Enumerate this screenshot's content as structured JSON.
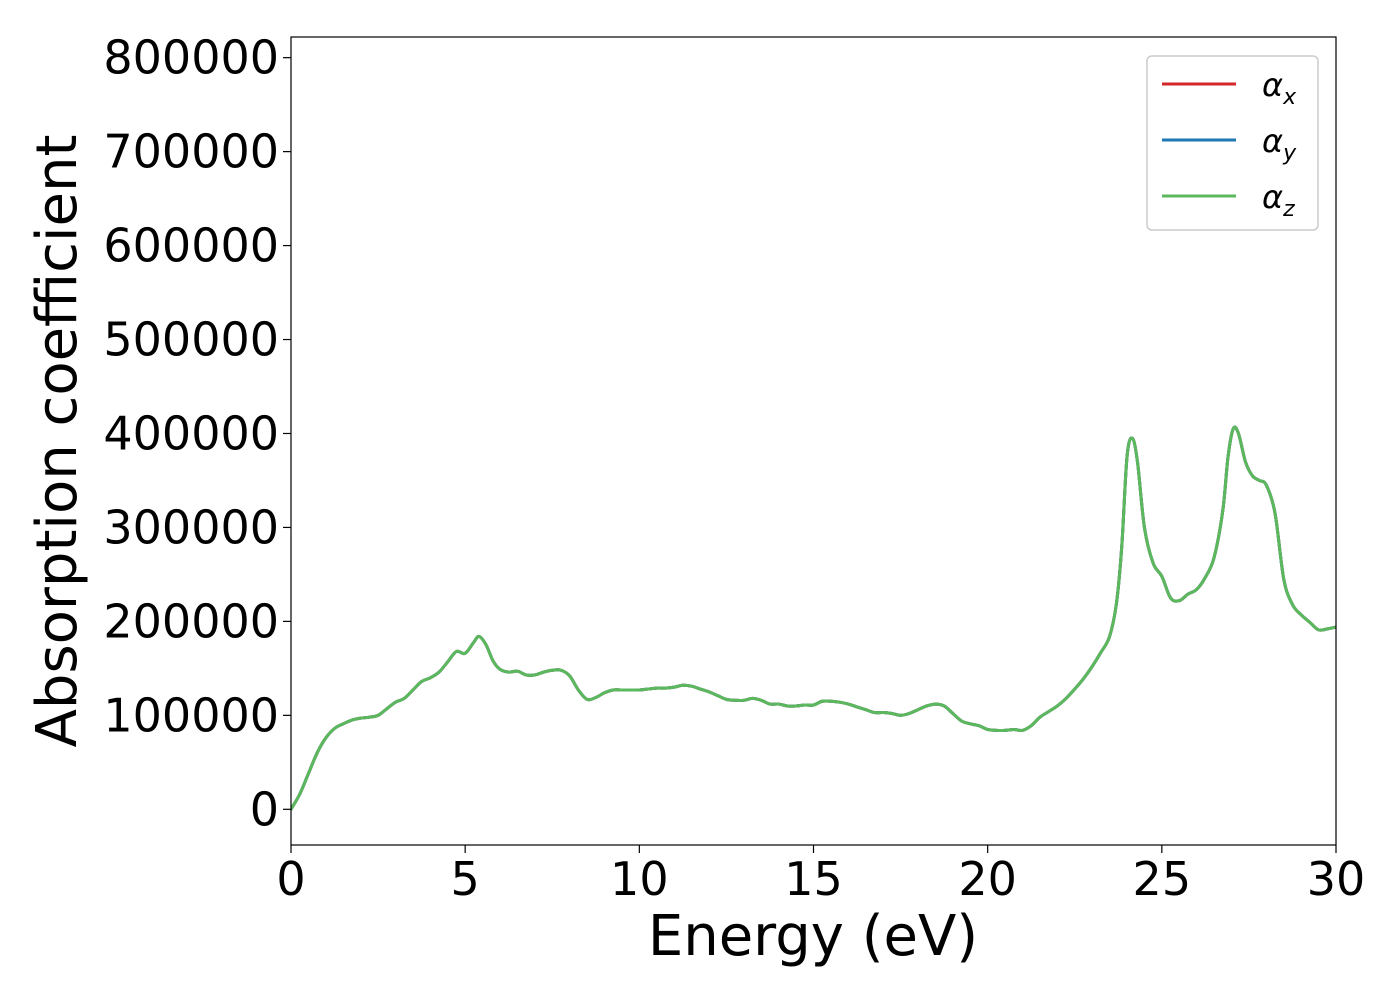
{
  "chart_data": {
    "type": "line",
    "xlabel": "Energy (eV)",
    "ylabel": "Absorption coefficient",
    "xlim": [
      0,
      30
    ],
    "ylim": [
      -38000,
      822000
    ],
    "xticks": [
      0,
      5,
      10,
      15,
      20,
      25,
      30
    ],
    "yticks": [
      0,
      100000,
      200000,
      300000,
      400000,
      500000,
      600000,
      700000,
      800000
    ],
    "grid": false,
    "legend_position": "top-right",
    "x": [
      0,
      0.25,
      0.5,
      0.75,
      1.0,
      1.25,
      1.5,
      1.75,
      2.0,
      2.25,
      2.5,
      2.75,
      3.0,
      3.25,
      3.5,
      3.75,
      4.0,
      4.25,
      4.5,
      4.75,
      5.0,
      5.25,
      5.4,
      5.6,
      5.8,
      6.0,
      6.25,
      6.5,
      6.75,
      7.0,
      7.25,
      7.5,
      7.75,
      8.0,
      8.25,
      8.5,
      8.75,
      9.0,
      9.25,
      9.5,
      9.75,
      10.0,
      10.25,
      10.5,
      10.75,
      11.0,
      11.25,
      11.5,
      11.75,
      12.0,
      12.25,
      12.5,
      12.75,
      13.0,
      13.25,
      13.5,
      13.75,
      14.0,
      14.25,
      14.5,
      14.75,
      15.0,
      15.25,
      15.5,
      15.75,
      16.0,
      16.25,
      16.5,
      16.75,
      17.0,
      17.25,
      17.5,
      17.75,
      18.0,
      18.25,
      18.5,
      18.75,
      19.0,
      19.25,
      19.5,
      19.75,
      20.0,
      20.25,
      20.5,
      20.75,
      21.0,
      21.25,
      21.5,
      21.75,
      22.0,
      22.25,
      22.5,
      22.75,
      23.0,
      23.25,
      23.5,
      23.7,
      23.85,
      24.0,
      24.15,
      24.3,
      24.5,
      24.75,
      25.0,
      25.25,
      25.5,
      25.75,
      26.0,
      26.25,
      26.5,
      26.75,
      26.9,
      27.05,
      27.2,
      27.4,
      27.6,
      27.8,
      28.0,
      28.25,
      28.5,
      28.75,
      29.0,
      29.25,
      29.5,
      29.75,
      30.0
    ],
    "series": [
      {
        "name": "α_x",
        "label_main": "α",
        "label_sub": "x",
        "color": "#d62728",
        "values": [
          0,
          16000,
          38000,
          60000,
          76000,
          86000,
          91000,
          95000,
          97000,
          98000,
          100000,
          107000,
          114000,
          118000,
          127000,
          136000,
          140000,
          146000,
          157000,
          168000,
          166000,
          178000,
          184000,
          175000,
          158000,
          149000,
          146000,
          147000,
          143000,
          143000,
          146000,
          148000,
          148000,
          142000,
          127000,
          117000,
          119000,
          124000,
          127000,
          127000,
          127000,
          127000,
          128000,
          129000,
          129000,
          130000,
          132000,
          131000,
          128000,
          125000,
          121000,
          117000,
          116000,
          116000,
          118000,
          116000,
          112000,
          112000,
          110000,
          110000,
          111000,
          111000,
          115000,
          115000,
          114000,
          112000,
          109000,
          106000,
          103000,
          103000,
          102000,
          100000,
          102000,
          106000,
          110000,
          112000,
          110000,
          102000,
          94000,
          91000,
          89000,
          85000,
          84000,
          84000,
          85000,
          84000,
          89000,
          98000,
          104000,
          110000,
          118000,
          128000,
          139000,
          152000,
          167000,
          184000,
          220000,
          280000,
          375000,
          395000,
          370000,
          300000,
          262000,
          248000,
          225000,
          222000,
          229000,
          234000,
          247000,
          268000,
          318000,
          375000,
          405000,
          400000,
          370000,
          355000,
          350000,
          345000,
          315000,
          245000,
          218000,
          207000,
          199000,
          191000,
          192000,
          194000
        ]
      },
      {
        "name": "α_y",
        "label_main": "α",
        "label_sub": "y",
        "color": "#1f77b4",
        "values": [
          0,
          16000,
          38000,
          60000,
          76000,
          86000,
          91000,
          95000,
          97000,
          98000,
          100000,
          107000,
          114000,
          118000,
          127000,
          136000,
          140000,
          146000,
          157000,
          168000,
          166000,
          178000,
          184000,
          175000,
          158000,
          149000,
          146000,
          147000,
          143000,
          143000,
          146000,
          148000,
          148000,
          142000,
          127000,
          117000,
          119000,
          124000,
          127000,
          127000,
          127000,
          127000,
          128000,
          129000,
          129000,
          130000,
          132000,
          131000,
          128000,
          125000,
          121000,
          117000,
          116000,
          116000,
          118000,
          116000,
          112000,
          112000,
          110000,
          110000,
          111000,
          111000,
          115000,
          115000,
          114000,
          112000,
          109000,
          106000,
          103000,
          103000,
          102000,
          100000,
          102000,
          106000,
          110000,
          112000,
          110000,
          102000,
          94000,
          91000,
          89000,
          85000,
          84000,
          84000,
          85000,
          84000,
          89000,
          98000,
          104000,
          110000,
          118000,
          128000,
          139000,
          152000,
          167000,
          184000,
          220000,
          280000,
          375000,
          395000,
          370000,
          300000,
          262000,
          248000,
          225000,
          222000,
          229000,
          234000,
          247000,
          268000,
          318000,
          375000,
          405000,
          400000,
          370000,
          355000,
          350000,
          345000,
          315000,
          245000,
          218000,
          207000,
          199000,
          191000,
          192000,
          194000
        ]
      },
      {
        "name": "α_z",
        "label_main": "α",
        "label_sub": "z",
        "color": "#5cb85c",
        "values": [
          0,
          16000,
          38000,
          60000,
          76000,
          86000,
          91000,
          95000,
          97000,
          98000,
          100000,
          107000,
          114000,
          118000,
          127000,
          136000,
          140000,
          146000,
          157000,
          168000,
          166000,
          178000,
          184000,
          175000,
          158000,
          149000,
          146000,
          147000,
          143000,
          143000,
          146000,
          148000,
          148000,
          142000,
          127000,
          117000,
          119000,
          124000,
          127000,
          127000,
          127000,
          127000,
          128000,
          129000,
          129000,
          130000,
          132000,
          131000,
          128000,
          125000,
          121000,
          117000,
          116000,
          116000,
          118000,
          116000,
          112000,
          112000,
          110000,
          110000,
          111000,
          111000,
          115000,
          115000,
          114000,
          112000,
          109000,
          106000,
          103000,
          103000,
          102000,
          100000,
          102000,
          106000,
          110000,
          112000,
          110000,
          102000,
          94000,
          91000,
          89000,
          85000,
          84000,
          84000,
          85000,
          84000,
          89000,
          98000,
          104000,
          110000,
          118000,
          128000,
          139000,
          152000,
          167000,
          184000,
          220000,
          280000,
          375000,
          395000,
          370000,
          300000,
          262000,
          248000,
          225000,
          222000,
          229000,
          234000,
          247000,
          268000,
          318000,
          375000,
          405000,
          400000,
          370000,
          355000,
          350000,
          345000,
          315000,
          245000,
          218000,
          207000,
          199000,
          191000,
          192000,
          194000
        ]
      }
    ]
  }
}
